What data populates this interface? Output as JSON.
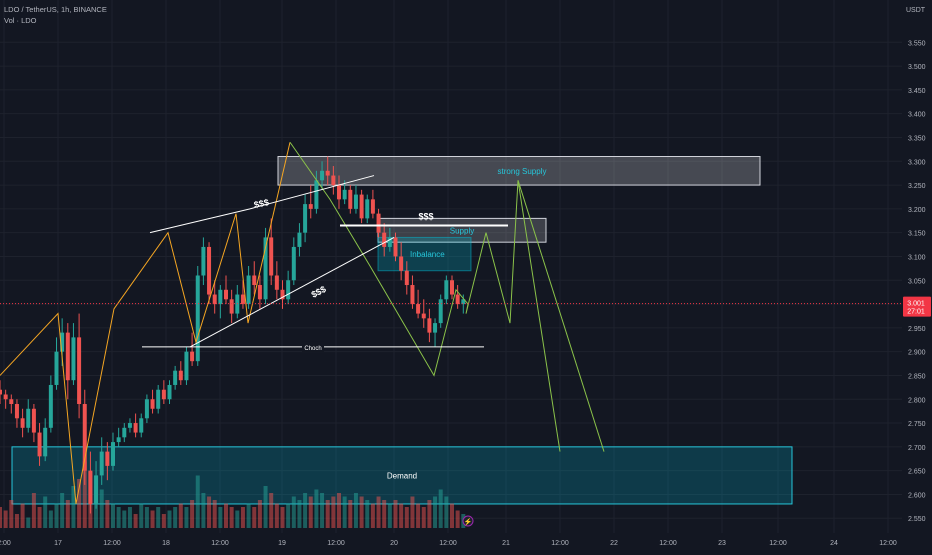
{
  "header": {
    "symbol_line": "LDO / TetherUS, 1h, BINANCE",
    "volume_label": "Vol · LDO"
  },
  "price_axis": {
    "unit": "USDT",
    "ticks": [
      "3.550",
      "3.500",
      "3.450",
      "3.400",
      "3.350",
      "3.300",
      "3.250",
      "3.200",
      "3.150",
      "3.100",
      "3.050",
      "3.000",
      "2.950",
      "2.900",
      "2.850",
      "2.800",
      "2.750",
      "2.700",
      "2.650",
      "2.600",
      "2.550"
    ],
    "last_price": "3.001",
    "countdown": "27:01"
  },
  "time_axis": {
    "ticks": [
      "2:00",
      "17",
      "12:00",
      "18",
      "12:00",
      "19",
      "12:00",
      "20",
      "12:00",
      "21",
      "12:00",
      "22",
      "12:00",
      "23",
      "12:00",
      "24",
      "12:00"
    ]
  },
  "colors": {
    "background": "#131722",
    "up": "#26a69a",
    "down": "#ef5350",
    "projection": "#8bc34a",
    "zigzag": "#f5a623",
    "zone_teal": "#00bcd4",
    "last_price_badge": "#f23645"
  },
  "annotations": {
    "strong_supply": "strong Supply",
    "supply": "Supply",
    "inbalance": "Inbalance",
    "demand": "Demand",
    "liquidity_1": "$$$",
    "liquidity_2": "$$$",
    "liquidity_3": "$$$",
    "choch": "Choch"
  },
  "chart_data": {
    "type": "candlestick",
    "symbol": "LDO / TetherUS",
    "interval": "1h",
    "exchange": "BINANCE",
    "ylim": [
      2.54,
      3.58
    ],
    "x_ticks": [
      "2:00",
      "17",
      "12:00",
      "18",
      "12:00",
      "19",
      "12:00",
      "20",
      "12:00",
      "21",
      "12:00",
      "22",
      "12:00",
      "23",
      "12:00",
      "24",
      "12:00"
    ],
    "candles": [
      [
        2.82,
        2.84,
        2.79,
        2.81
      ],
      [
        2.81,
        2.82,
        2.78,
        2.8
      ],
      [
        2.8,
        2.81,
        2.77,
        2.79
      ],
      [
        2.79,
        2.8,
        2.74,
        2.76
      ],
      [
        2.76,
        2.78,
        2.72,
        2.74
      ],
      [
        2.74,
        2.8,
        2.73,
        2.78
      ],
      [
        2.78,
        2.79,
        2.71,
        2.73
      ],
      [
        2.73,
        2.75,
        2.66,
        2.68
      ],
      [
        2.68,
        2.76,
        2.67,
        2.74
      ],
      [
        2.74,
        2.85,
        2.73,
        2.83
      ],
      [
        2.83,
        2.93,
        2.82,
        2.9
      ],
      [
        2.9,
        2.97,
        2.87,
        2.94
      ],
      [
        2.94,
        2.96,
        2.8,
        2.84
      ],
      [
        2.84,
        2.96,
        2.83,
        2.93
      ],
      [
        2.93,
        2.98,
        2.76,
        2.79
      ],
      [
        2.79,
        2.82,
        2.62,
        2.65
      ],
      [
        2.65,
        2.69,
        2.56,
        2.58
      ],
      [
        2.58,
        2.67,
        2.57,
        2.64
      ],
      [
        2.64,
        2.72,
        2.62,
        2.69
      ],
      [
        2.69,
        2.71,
        2.63,
        2.66
      ],
      [
        2.66,
        2.73,
        2.65,
        2.71
      ],
      [
        2.71,
        2.74,
        2.7,
        2.72
      ],
      [
        2.72,
        2.75,
        2.71,
        2.74
      ],
      [
        2.74,
        2.76,
        2.73,
        2.75
      ],
      [
        2.75,
        2.77,
        2.72,
        2.73
      ],
      [
        2.73,
        2.77,
        2.72,
        2.76
      ],
      [
        2.76,
        2.81,
        2.75,
        2.8
      ],
      [
        2.8,
        2.82,
        2.77,
        2.78
      ],
      [
        2.78,
        2.83,
        2.77,
        2.82
      ],
      [
        2.82,
        2.84,
        2.79,
        2.8
      ],
      [
        2.8,
        2.84,
        2.79,
        2.83
      ],
      [
        2.83,
        2.87,
        2.82,
        2.86
      ],
      [
        2.86,
        2.88,
        2.83,
        2.84
      ],
      [
        2.84,
        2.91,
        2.83,
        2.9
      ],
      [
        2.9,
        2.94,
        2.87,
        2.88
      ],
      [
        2.88,
        3.08,
        2.87,
        3.06
      ],
      [
        3.06,
        3.14,
        3.04,
        3.12
      ],
      [
        3.12,
        3.13,
        3.0,
        3.02
      ],
      [
        3.02,
        3.05,
        2.98,
        3.0
      ],
      [
        3.0,
        3.04,
        2.97,
        3.03
      ],
      [
        3.03,
        3.06,
        3.0,
        3.01
      ],
      [
        3.01,
        3.03,
        2.96,
        2.98
      ],
      [
        2.98,
        3.04,
        2.97,
        3.02
      ],
      [
        3.02,
        3.05,
        2.99,
        3.0
      ],
      [
        3.0,
        3.08,
        2.99,
        3.06
      ],
      [
        3.06,
        3.09,
        3.02,
        3.04
      ],
      [
        3.04,
        3.06,
        2.99,
        3.01
      ],
      [
        3.01,
        3.16,
        3.0,
        3.14
      ],
      [
        3.14,
        3.18,
        3.04,
        3.06
      ],
      [
        3.06,
        3.09,
        3.01,
        3.03
      ],
      [
        3.03,
        3.05,
        2.99,
        3.01
      ],
      [
        3.01,
        3.07,
        3.0,
        3.05
      ],
      [
        3.05,
        3.14,
        3.04,
        3.12
      ],
      [
        3.12,
        3.17,
        3.1,
        3.15
      ],
      [
        3.15,
        3.23,
        3.13,
        3.21
      ],
      [
        3.21,
        3.25,
        3.18,
        3.2
      ],
      [
        3.2,
        3.28,
        3.19,
        3.26
      ],
      [
        3.26,
        3.3,
        3.24,
        3.28
      ],
      [
        3.28,
        3.31,
        3.25,
        3.27
      ],
      [
        3.27,
        3.29,
        3.23,
        3.25
      ],
      [
        3.25,
        3.27,
        3.2,
        3.22
      ],
      [
        3.22,
        3.26,
        3.21,
        3.24
      ],
      [
        3.24,
        3.25,
        3.19,
        3.2
      ],
      [
        3.2,
        3.25,
        3.19,
        3.23
      ],
      [
        3.23,
        3.24,
        3.17,
        3.18
      ],
      [
        3.18,
        3.23,
        3.17,
        3.22
      ],
      [
        3.22,
        3.24,
        3.18,
        3.19
      ],
      [
        3.19,
        3.2,
        3.14,
        3.15
      ],
      [
        3.15,
        3.17,
        3.1,
        3.12
      ],
      [
        3.12,
        3.16,
        3.11,
        3.14
      ],
      [
        3.14,
        3.15,
        3.09,
        3.1
      ],
      [
        3.1,
        3.13,
        3.05,
        3.07
      ],
      [
        3.07,
        3.09,
        3.02,
        3.04
      ],
      [
        3.04,
        3.06,
        2.99,
        3.0
      ],
      [
        3.0,
        3.03,
        2.97,
        2.98
      ],
      [
        2.98,
        3.01,
        2.95,
        2.97
      ],
      [
        2.97,
        2.99,
        2.92,
        2.94
      ],
      [
        2.94,
        2.97,
        2.91,
        2.96
      ],
      [
        2.96,
        3.02,
        2.95,
        3.01
      ],
      [
        3.01,
        3.06,
        3.0,
        3.05
      ],
      [
        3.05,
        3.06,
        3.01,
        3.02
      ],
      [
        3.02,
        3.04,
        2.99,
        3.0
      ],
      [
        3.0,
        3.02,
        2.98,
        3.01
      ]
    ],
    "volume_range": [
      0,
      1
    ],
    "volume": [
      0.3,
      0.25,
      0.4,
      0.2,
      0.35,
      0.15,
      0.5,
      0.3,
      0.45,
      0.25,
      0.35,
      0.5,
      0.4,
      0.6,
      0.7,
      0.95,
      0.8,
      0.6,
      0.55,
      0.4,
      0.35,
      0.3,
      0.25,
      0.3,
      0.2,
      0.35,
      0.3,
      0.25,
      0.3,
      0.2,
      0.25,
      0.3,
      0.35,
      0.3,
      0.4,
      0.75,
      0.5,
      0.45,
      0.4,
      0.3,
      0.35,
      0.3,
      0.25,
      0.3,
      0.35,
      0.3,
      0.4,
      0.6,
      0.5,
      0.35,
      0.3,
      0.35,
      0.45,
      0.4,
      0.5,
      0.45,
      0.55,
      0.5,
      0.4,
      0.45,
      0.5,
      0.45,
      0.4,
      0.5,
      0.45,
      0.4,
      0.35,
      0.45,
      0.4,
      0.35,
      0.4,
      0.35,
      0.3,
      0.45,
      0.35,
      0.3,
      0.4,
      0.45,
      0.55,
      0.45,
      0.35,
      0.25,
      0.2
    ],
    "zones": {
      "strong_supply": [
        3.25,
        3.31
      ],
      "supply": [
        3.13,
        3.18
      ],
      "inbalance": [
        3.07,
        3.14
      ],
      "demand": [
        2.58,
        2.7
      ]
    },
    "levels": {
      "choch": 2.91,
      "liquidity": 3.165
    },
    "projection": [
      3.0,
      2.98,
      3.15,
      2.96,
      3.26,
      2.69
    ]
  }
}
